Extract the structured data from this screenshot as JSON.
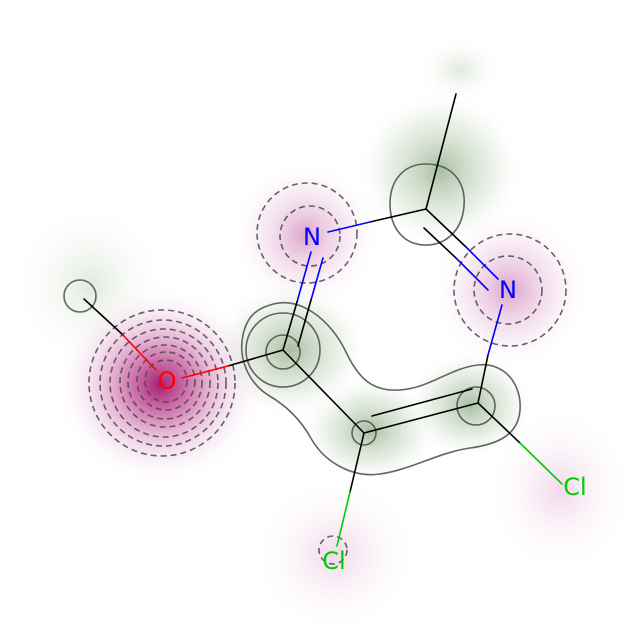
{
  "molecule": {
    "atoms": [
      {
        "id": "CH3",
        "element": "C",
        "label": ""
      },
      {
        "id": "C2",
        "element": "C",
        "label": ""
      },
      {
        "id": "N1",
        "element": "N",
        "label": "N"
      },
      {
        "id": "N3",
        "element": "N",
        "label": "N"
      },
      {
        "id": "C6",
        "element": "C",
        "label": ""
      },
      {
        "id": "C5",
        "element": "C",
        "label": ""
      },
      {
        "id": "C4",
        "element": "C",
        "label": ""
      },
      {
        "id": "O",
        "element": "O",
        "label": "O"
      },
      {
        "id": "H",
        "element": "H",
        "label": ""
      },
      {
        "id": "Cl5",
        "element": "Cl",
        "label": "Cl"
      },
      {
        "id": "Cl4",
        "element": "Cl",
        "label": "Cl"
      }
    ],
    "bonds": [
      {
        "from": "CH3",
        "to": "C2",
        "order": 1
      },
      {
        "from": "C2",
        "to": "N1",
        "order": 1
      },
      {
        "from": "C2",
        "to": "N3",
        "order": 2
      },
      {
        "from": "N1",
        "to": "C6",
        "order": 2
      },
      {
        "from": "C6",
        "to": "C5",
        "order": 1
      },
      {
        "from": "C5",
        "to": "C4",
        "order": 2
      },
      {
        "from": "C4",
        "to": "N3",
        "order": 1
      },
      {
        "from": "C6",
        "to": "O",
        "order": 1
      },
      {
        "from": "O",
        "to": "H",
        "order": 1
      },
      {
        "from": "C5",
        "to": "Cl5",
        "order": 1
      },
      {
        "from": "C4",
        "to": "Cl4",
        "order": 1
      }
    ]
  },
  "colors": {
    "carbon": "#000000",
    "nitrogen": "#0000ff",
    "oxygen": "#ff0000",
    "chlorine": "#00cc00",
    "negative_field": "#b0207a",
    "positive_field": "#7a9a6a"
  }
}
